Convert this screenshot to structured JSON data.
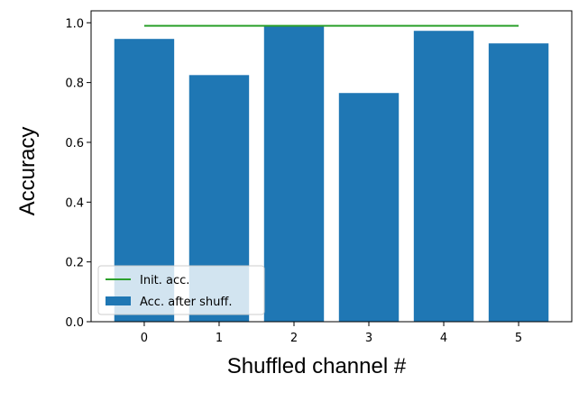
{
  "chart_data": {
    "type": "bar",
    "x": [
      0,
      1,
      2,
      3,
      4,
      5
    ],
    "series": [
      {
        "name": "Init. acc.",
        "type": "line",
        "color": "#2ca02c",
        "values": [
          0.99,
          0.99,
          0.99,
          0.99,
          0.99,
          0.99
        ]
      },
      {
        "name": "Acc. after shuff.",
        "type": "bar",
        "color": "#1f77b4",
        "values": [
          0.946,
          0.825,
          0.991,
          0.765,
          0.973,
          0.931
        ]
      }
    ],
    "xlabel": "Shuffled channel #",
    "ylabel": "Accuracy",
    "xlim": [
      -0.71,
      5.71
    ],
    "xticks": [
      0,
      1,
      2,
      3,
      4,
      5
    ],
    "ylim": [
      0,
      1.04
    ],
    "yticks": [
      {
        "value": 0,
        "label": "0.0"
      },
      0.2,
      0.4,
      0.6,
      0.8,
      {
        "value": 1,
        "label": "1.0"
      }
    ],
    "bar_width": 0.8,
    "legend": "lower left"
  }
}
